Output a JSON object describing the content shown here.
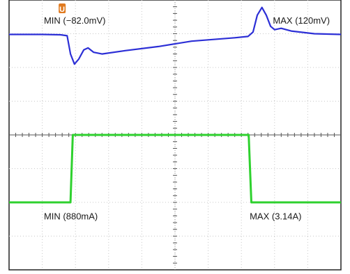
{
  "chart_data": {
    "type": "line",
    "grid": true,
    "x": {
      "divisions": 10,
      "range": [
        0,
        10
      ]
    },
    "y": {
      "divisions": 8,
      "range": [
        0,
        8
      ]
    },
    "trigger_marker": {
      "label": "U",
      "color": "#e07a1f",
      "x_div": 1.6
    },
    "series": [
      {
        "color": "#2c2fd6",
        "points": [
          [
            0.0,
            6.98
          ],
          [
            1.0,
            6.98
          ],
          [
            1.55,
            6.97
          ],
          [
            1.75,
            6.94
          ],
          [
            1.85,
            6.4
          ],
          [
            1.97,
            6.1
          ],
          [
            2.1,
            6.25
          ],
          [
            2.25,
            6.52
          ],
          [
            2.38,
            6.58
          ],
          [
            2.55,
            6.45
          ],
          [
            2.8,
            6.4
          ],
          [
            3.5,
            6.5
          ],
          [
            4.5,
            6.62
          ],
          [
            5.5,
            6.78
          ],
          [
            6.8,
            6.88
          ],
          [
            7.2,
            6.92
          ],
          [
            7.35,
            7.05
          ],
          [
            7.48,
            7.55
          ],
          [
            7.62,
            7.78
          ],
          [
            7.75,
            7.55
          ],
          [
            7.88,
            7.22
          ],
          [
            8.0,
            7.12
          ],
          [
            8.2,
            7.16
          ],
          [
            8.5,
            7.08
          ],
          [
            9.2,
            7.0
          ],
          [
            10.0,
            6.98
          ]
        ]
      },
      {
        "color": "#2ed12e",
        "points": [
          [
            0.0,
            2.0
          ],
          [
            1.85,
            2.0
          ],
          [
            1.92,
            4.0
          ],
          [
            7.22,
            4.0
          ],
          [
            7.3,
            2.0
          ],
          [
            10.0,
            2.0
          ]
        ]
      }
    ],
    "annotations": [
      {
        "text": "MIN (−82.0mV)",
        "x_div": 1.05,
        "y_div": 7.3
      },
      {
        "text": "MAX (120mV)",
        "x_div": 7.95,
        "y_div": 7.3
      },
      {
        "text": "MIN (880mA)",
        "x_div": 1.05,
        "y_div": 1.5
      },
      {
        "text": "MAX (3.14A)",
        "x_div": 7.25,
        "y_div": 1.5
      }
    ]
  }
}
